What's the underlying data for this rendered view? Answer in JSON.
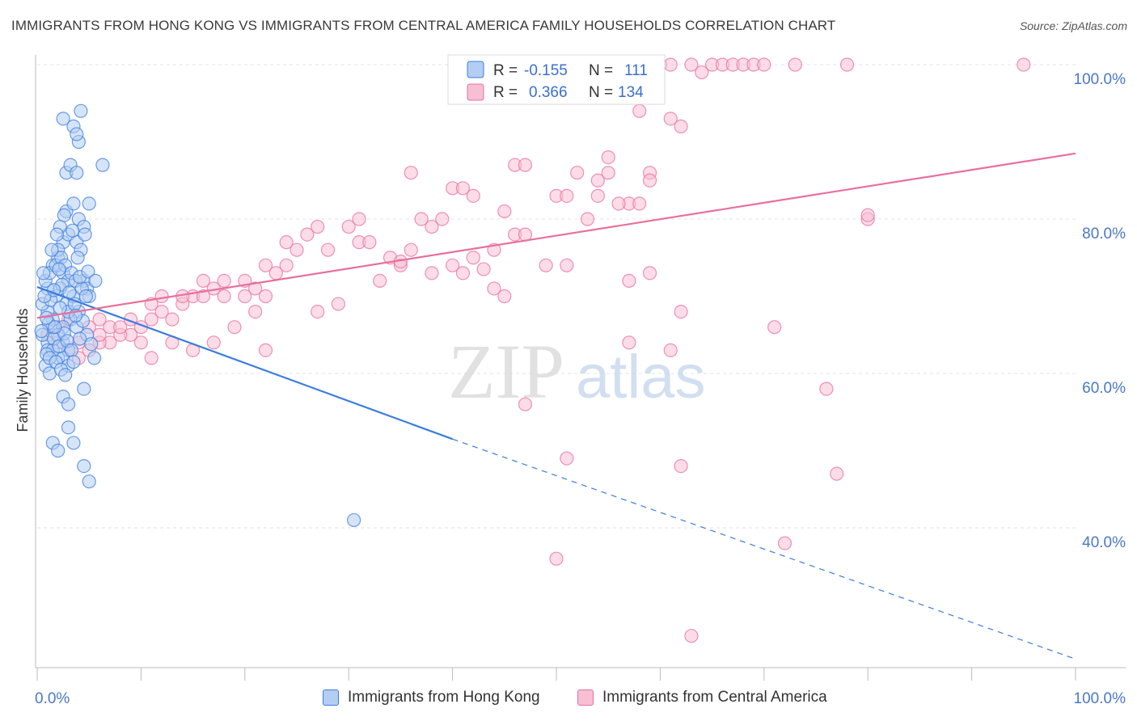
{
  "header": {
    "title": "IMMIGRANTS FROM HONG KONG VS IMMIGRANTS FROM CENTRAL AMERICA FAMILY HOUSEHOLDS CORRELATION CHART",
    "source": "Source: ZipAtlas.com"
  },
  "watermark": {
    "part1": "ZIP",
    "part2": "atlas"
  },
  "colors": {
    "blue": "#3b7ddd",
    "blue_fill": "#b4cdf3",
    "pink": "#e8709a",
    "pink_fill": "#f7bfd3",
    "axis_text": "#4a78c8",
    "grid": "#e3e3e3"
  },
  "legend": {
    "rows": [
      {
        "r_label": "R =",
        "r_value": "-0.155",
        "n_label": "N =",
        "n_value": "111"
      },
      {
        "r_label": "R =",
        "r_value": "0.366",
        "n_label": "N =",
        "n_value": "134"
      }
    ]
  },
  "bottom_legend": {
    "items": [
      {
        "label": "Immigrants from Hong Kong"
      },
      {
        "label": "Immigrants from Central America"
      }
    ]
  },
  "chart_data": {
    "type": "scatter",
    "title": "IMMIGRANTS FROM HONG KONG VS IMMIGRANTS FROM CENTRAL AMERICA FAMILY HOUSEHOLDS CORRELATION CHART",
    "xlabel": "",
    "ylabel": "Family Households",
    "xlim": [
      0,
      100
    ],
    "ylim": [
      21,
      100
    ],
    "x_tick_labels": [
      "0.0%",
      "100.0%"
    ],
    "y_ticks": [
      {
        "value": 40,
        "label": "40.0%"
      },
      {
        "value": 60,
        "label": "60.0%"
      },
      {
        "value": 80,
        "label": "80.0%"
      },
      {
        "value": 100,
        "label": "100.0%"
      }
    ],
    "grid": true,
    "series": [
      {
        "name": "Immigrants from Hong Kong",
        "color": "#3b7ddd",
        "R": -0.155,
        "N": 111,
        "trend": {
          "x0": 0,
          "y0": 71.2,
          "x1": 40,
          "y1": 51.5,
          "dashed_to_x": 100,
          "dashed_to_y": 23.0
        },
        "points": [
          [
            1,
            71
          ],
          [
            1.5,
            66
          ],
          [
            1,
            64
          ],
          [
            1,
            63
          ],
          [
            0.5,
            65
          ],
          [
            0.8,
            61
          ],
          [
            1.2,
            60
          ],
          [
            2,
            62
          ],
          [
            2.5,
            64
          ],
          [
            3,
            63
          ],
          [
            1.5,
            74
          ],
          [
            2,
            75
          ],
          [
            2.5,
            73
          ],
          [
            3,
            72
          ],
          [
            1.8,
            70
          ],
          [
            2.2,
            71
          ],
          [
            2.8,
            69
          ],
          [
            3.5,
            70
          ],
          [
            4,
            68
          ],
          [
            3.2,
            67
          ],
          [
            2.5,
            77
          ],
          [
            3,
            78
          ],
          [
            2.2,
            79
          ],
          [
            2.8,
            81
          ],
          [
            3.5,
            82
          ],
          [
            4,
            80
          ],
          [
            4.5,
            79
          ],
          [
            3.8,
            77
          ],
          [
            4.2,
            76
          ],
          [
            2,
            76
          ],
          [
            2.8,
            86
          ],
          [
            3.2,
            87
          ],
          [
            3.8,
            86
          ],
          [
            4,
            90
          ],
          [
            3.5,
            92
          ],
          [
            2.5,
            93
          ],
          [
            3.8,
            91
          ],
          [
            4.2,
            94
          ],
          [
            6.3,
            87
          ],
          [
            5,
            82
          ],
          [
            4.5,
            72
          ],
          [
            4.8,
            71
          ],
          [
            5,
            70
          ],
          [
            3,
            68
          ],
          [
            2.5,
            66
          ],
          [
            2,
            65
          ],
          [
            1.5,
            67
          ],
          [
            1,
            68
          ],
          [
            0.5,
            69
          ],
          [
            0.8,
            72
          ],
          [
            1.2,
            73
          ],
          [
            1.8,
            74
          ],
          [
            2.3,
            75
          ],
          [
            2.7,
            74
          ],
          [
            3.3,
            73
          ],
          [
            3.7,
            72
          ],
          [
            4.3,
            71
          ],
          [
            4.7,
            70
          ],
          [
            1.5,
            63
          ],
          [
            2.5,
            62
          ],
          [
            3,
            61
          ],
          [
            4.5,
            58
          ],
          [
            2.5,
            57
          ],
          [
            3,
            56
          ],
          [
            3,
            53
          ],
          [
            1.5,
            51
          ],
          [
            2,
            50
          ],
          [
            3.5,
            51
          ],
          [
            4.5,
            48
          ],
          [
            5,
            46
          ],
          [
            30.5,
            41
          ],
          [
            5.5,
            62
          ],
          [
            4.8,
            65
          ],
          [
            3.8,
            66
          ],
          [
            1.6,
            64.5
          ],
          [
            2.1,
            63.5
          ],
          [
            2.6,
            65.2
          ],
          [
            1.1,
            66.5
          ],
          [
            0.9,
            62.5
          ],
          [
            1.3,
            69.5
          ],
          [
            2.4,
            71.5
          ],
          [
            3.1,
            70.5
          ],
          [
            3.6,
            69
          ],
          [
            4.1,
            72.5
          ],
          [
            0.7,
            70
          ],
          [
            1.9,
            78
          ],
          [
            2.6,
            80.5
          ],
          [
            3.4,
            78.5
          ],
          [
            4.6,
            78
          ],
          [
            3.9,
            75
          ],
          [
            1.4,
            76
          ],
          [
            2.1,
            73.5
          ],
          [
            0.6,
            73
          ],
          [
            1.7,
            66
          ],
          [
            2.9,
            64.2
          ],
          [
            3.3,
            63
          ],
          [
            1.2,
            62
          ],
          [
            0.4,
            65.5
          ],
          [
            4.4,
            66.8
          ],
          [
            5.2,
            63.8
          ],
          [
            2.2,
            68.5
          ],
          [
            3.7,
            67.5
          ],
          [
            1.8,
            61.5
          ],
          [
            2.3,
            60.5
          ],
          [
            0.9,
            67.2
          ],
          [
            4.9,
            73.2
          ],
          [
            5.6,
            72
          ],
          [
            3.5,
            61.5
          ],
          [
            2.7,
            59.8
          ],
          [
            1.6,
            70.8
          ],
          [
            4.1,
            64.5
          ]
        ]
      },
      {
        "name": "Immigrants from Central America",
        "color": "#e8709a",
        "R": 0.366,
        "N": 134,
        "trend": {
          "x0": 0,
          "y0": 67.2,
          "x1": 100,
          "y1": 88.5
        },
        "points": [
          [
            54,
            97
          ],
          [
            56,
            100
          ],
          [
            58,
            100
          ],
          [
            60,
            100
          ],
          [
            61,
            100
          ],
          [
            63,
            100
          ],
          [
            64,
            99
          ],
          [
            65,
            100
          ],
          [
            66,
            100
          ],
          [
            67,
            100
          ],
          [
            68,
            100
          ],
          [
            69,
            100
          ],
          [
            70,
            100
          ],
          [
            73,
            100
          ],
          [
            78,
            100
          ],
          [
            95,
            100
          ],
          [
            48,
            96
          ],
          [
            58,
            94
          ],
          [
            61,
            93
          ],
          [
            62,
            92
          ],
          [
            46,
            87
          ],
          [
            47,
            87
          ],
          [
            52,
            86
          ],
          [
            55,
            86
          ],
          [
            59,
            86
          ],
          [
            36,
            86
          ],
          [
            50,
            83
          ],
          [
            51,
            83
          ],
          [
            54,
            83
          ],
          [
            57,
            82
          ],
          [
            40,
            84
          ],
          [
            41,
            84
          ],
          [
            42,
            83
          ],
          [
            45,
            81
          ],
          [
            39,
            80
          ],
          [
            37,
            80
          ],
          [
            38,
            79
          ],
          [
            31,
            80
          ],
          [
            30,
            79
          ],
          [
            27,
            79
          ],
          [
            26,
            78
          ],
          [
            24,
            77
          ],
          [
            25,
            76
          ],
          [
            28,
            76
          ],
          [
            31,
            77
          ],
          [
            32,
            77
          ],
          [
            34,
            75
          ],
          [
            35,
            74
          ],
          [
            36,
            76
          ],
          [
            40,
            74
          ],
          [
            42,
            75
          ],
          [
            44,
            76
          ],
          [
            46,
            78
          ],
          [
            47,
            78
          ],
          [
            53,
            80
          ],
          [
            56,
            82
          ],
          [
            58,
            82
          ],
          [
            59,
            85
          ],
          [
            54,
            85
          ],
          [
            55,
            88
          ],
          [
            22,
            74
          ],
          [
            23,
            73
          ],
          [
            24,
            74
          ],
          [
            20,
            72
          ],
          [
            21,
            71
          ],
          [
            22,
            70
          ],
          [
            18,
            70
          ],
          [
            16,
            72
          ],
          [
            17,
            71
          ],
          [
            15,
            70
          ],
          [
            14,
            69
          ],
          [
            12,
            68
          ],
          [
            13,
            67
          ],
          [
            11,
            67
          ],
          [
            10,
            66
          ],
          [
            9,
            65
          ],
          [
            8,
            65
          ],
          [
            7,
            64
          ],
          [
            6,
            64
          ],
          [
            5,
            63
          ],
          [
            4,
            64
          ],
          [
            3,
            63
          ],
          [
            2,
            64
          ],
          [
            1,
            65
          ],
          [
            2,
            66
          ],
          [
            3,
            67
          ],
          [
            5,
            66
          ],
          [
            6,
            67
          ],
          [
            7,
            66
          ],
          [
            9,
            67
          ],
          [
            11,
            69
          ],
          [
            12,
            70
          ],
          [
            14,
            70
          ],
          [
            16,
            70
          ],
          [
            18,
            72
          ],
          [
            20,
            70
          ],
          [
            21,
            68
          ],
          [
            19,
            66
          ],
          [
            17,
            64
          ],
          [
            15,
            63
          ],
          [
            13,
            64
          ],
          [
            11,
            62
          ],
          [
            10,
            64
          ],
          [
            8,
            66
          ],
          [
            6,
            65
          ],
          [
            4,
            62
          ],
          [
            22,
            63
          ],
          [
            38,
            73
          ],
          [
            44,
            71
          ],
          [
            45,
            70
          ],
          [
            49,
            74
          ],
          [
            51,
            74
          ],
          [
            57,
            72
          ],
          [
            59,
            73
          ],
          [
            62,
            68
          ],
          [
            71,
            66
          ],
          [
            80,
            80
          ],
          [
            57,
            64
          ],
          [
            61,
            63
          ],
          [
            76,
            58
          ],
          [
            47,
            56
          ],
          [
            51,
            49
          ],
          [
            62,
            48
          ],
          [
            77,
            47
          ],
          [
            72,
            38
          ],
          [
            50,
            36
          ],
          [
            63,
            26
          ],
          [
            80,
            80.5
          ],
          [
            33,
            72
          ],
          [
            35,
            74.5
          ],
          [
            41,
            73
          ],
          [
            43,
            73.5
          ],
          [
            29,
            69
          ],
          [
            27,
            68
          ]
        ]
      }
    ]
  }
}
